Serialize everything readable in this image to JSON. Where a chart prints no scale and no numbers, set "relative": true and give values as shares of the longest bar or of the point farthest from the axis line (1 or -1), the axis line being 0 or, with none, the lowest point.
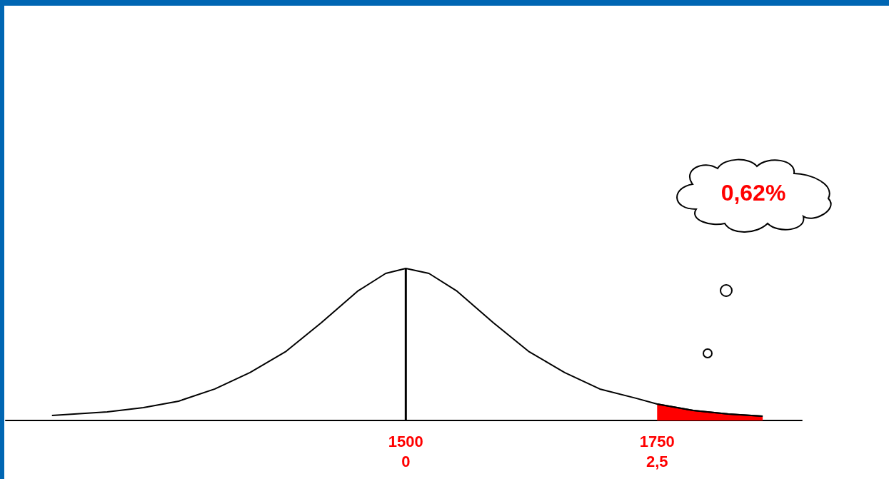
{
  "chart_data": {
    "type": "line",
    "relative": true,
    "xlim": [
      1102,
      1894
    ],
    "xticks": [
      1500,
      1750
    ],
    "x2lim": [
      -3.98,
      3.94
    ],
    "x2ticks": [
      0,
      {
        "value": 2.5,
        "label": "2,5"
      }
    ],
    "tick_labels": "x",
    "grid": false,
    "legend": false,
    "marker": "none",
    "line_style": "solid",
    "series": [
      {
        "color": "#000000",
        "x": [
          1148,
          1203,
          1239,
          1274,
          1310,
          1345,
          1381,
          1416,
          1452,
          1480,
          1500,
          1523,
          1551,
          1587,
          1622,
          1658,
          1693,
          1729,
          1750,
          1786,
          1821,
          1855
        ],
        "values": [
          0.033,
          0.056,
          0.085,
          0.127,
          0.207,
          0.315,
          0.455,
          0.643,
          0.85,
          0.967,
          1,
          0.967,
          0.85,
          0.643,
          0.455,
          0.315,
          0.207,
          0.146,
          0.108,
          0.066,
          0.042,
          0.028
        ]
      },
      {
        "type": "area",
        "color": "#ff0000",
        "x": [
          1750,
          1786,
          1821,
          1855
        ],
        "values": [
          0.108,
          0.066,
          0.042,
          0.028
        ]
      }
    ],
    "ref_lines": [
      {
        "axis": "x",
        "value": 1500,
        "color": "#000000"
      }
    ],
    "annotations": [
      "0,62%"
    ]
  }
}
